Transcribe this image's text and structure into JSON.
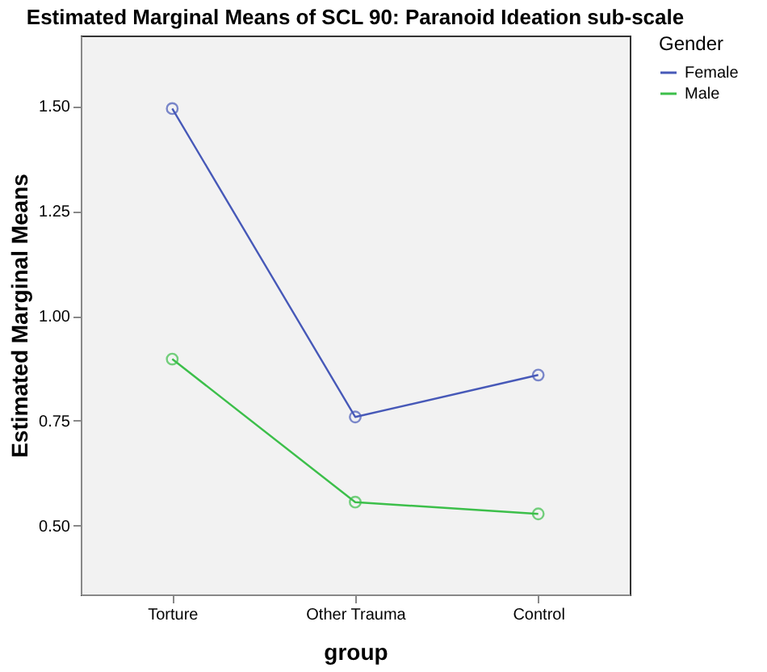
{
  "chart_data": {
    "type": "line",
    "title": "Estimated Marginal Means of SCL 90: Paranoid Ideation sub-scale",
    "xlabel": "group",
    "ylabel": "Estimated Marginal Means",
    "legend_title": "Gender",
    "categories": [
      "Torture",
      "Other Trauma",
      "Control"
    ],
    "series": [
      {
        "name": "Female",
        "color": "#4759b8",
        "values": [
          1.494,
          0.759,
          0.859
        ]
      },
      {
        "name": "Male",
        "color": "#3cbf4a",
        "values": [
          0.897,
          0.556,
          0.528
        ]
      }
    ],
    "ylim": [
      0.336,
      1.668
    ],
    "yticks": [
      {
        "value": 0.5,
        "label": "0.50"
      },
      {
        "value": 0.75,
        "label": "0.75"
      },
      {
        "value": 1.0,
        "label": "1.00"
      },
      {
        "value": 1.25,
        "label": "1.25"
      },
      {
        "value": 1.5,
        "label": "1.50"
      }
    ],
    "grid": false,
    "legend": "top right",
    "marker": "circle",
    "line_style": "solid"
  }
}
